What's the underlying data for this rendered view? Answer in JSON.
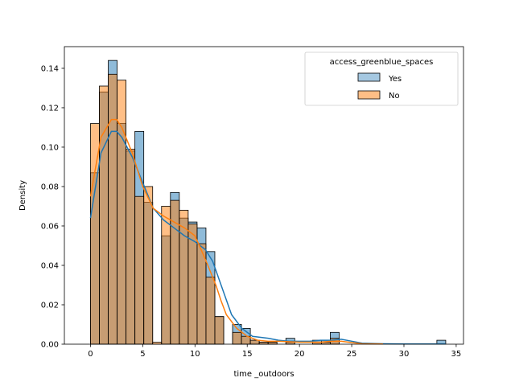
{
  "chart_data": {
    "type": "histogram",
    "xlabel": "time _outdoors",
    "ylabel": "Density",
    "xlim": [
      -2.5,
      35.7
    ],
    "ylim": [
      0,
      0.151
    ],
    "xticks": [
      0,
      5,
      10,
      15,
      20,
      25,
      30,
      35
    ],
    "yticks": [
      0.0,
      0.02,
      0.04,
      0.06,
      0.08,
      0.1,
      0.12,
      0.14
    ],
    "ytick_labels": [
      "0.00",
      "0.02",
      "0.04",
      "0.06",
      "0.08",
      "0.10",
      "0.12",
      "0.14"
    ],
    "bin_edges": [
      0,
      0.85,
      1.7,
      2.55,
      3.4,
      4.25,
      5.1,
      5.95,
      6.8,
      7.65,
      8.5,
      9.35,
      10.2,
      11.05,
      11.9,
      12.75,
      13.6,
      14.45,
      15.3,
      16.15,
      17.0,
      17.85,
      18.7,
      19.55,
      20.4,
      21.25,
      22.1,
      22.95,
      23.8,
      24.65,
      25.5,
      26.35,
      27.2,
      28.05,
      28.9,
      29.75,
      30.6,
      31.45,
      32.3,
      33.15,
      34.0
    ],
    "legend": {
      "title": "access_greenblue_spaces",
      "placement": "upper right",
      "entries": [
        "Yes",
        "No"
      ]
    },
    "series": [
      {
        "name": "Yes",
        "color": "#1f77b4",
        "fill": "#a5c8e1",
        "density": [
          0.087,
          0.128,
          0.144,
          0.112,
          0.098,
          0.108,
          0.072,
          0,
          0.055,
          0.077,
          0.064,
          0.062,
          0.059,
          0.047,
          0.014,
          0,
          0.01,
          0.008,
          0.002,
          0.001,
          0.001,
          0,
          0.003,
          0,
          0,
          0.002,
          0.002,
          0.006,
          0,
          0,
          0,
          0,
          0,
          0,
          0,
          0,
          0,
          0,
          0,
          0.002
        ],
        "kde_x": [
          0,
          1,
          2,
          2.5,
          3,
          4,
          5,
          6,
          7,
          8,
          9,
          10,
          11,
          11.7,
          12.5,
          13.5,
          14.5,
          15.5,
          17,
          18,
          19,
          20,
          21,
          22,
          23,
          24,
          25,
          26,
          28,
          30,
          32,
          34
        ],
        "kde_y": [
          0.064,
          0.097,
          0.108,
          0.108,
          0.105,
          0.095,
          0.082,
          0.069,
          0.063,
          0.059,
          0.055,
          0.052,
          0.048,
          0.042,
          0.03,
          0.015,
          0.008,
          0.004,
          0.003,
          0.002,
          0.0015,
          0.0015,
          0.0015,
          0.002,
          0.002,
          0.0025,
          0.0015,
          0.0005,
          0.0002,
          0.0001,
          0.0001,
          0.0001
        ]
      },
      {
        "name": "No",
        "color": "#ff7f0e",
        "fill": "#ffbe86",
        "density": [
          0.112,
          0.131,
          0.137,
          0.134,
          0.099,
          0.075,
          0.08,
          0.001,
          0.07,
          0.073,
          0.068,
          0.061,
          0.051,
          0.034,
          0.014,
          0,
          0.006,
          0.004,
          0.002,
          0.001,
          0.001,
          0,
          0.001,
          0,
          0,
          0.001,
          0.001,
          0.003,
          0,
          0,
          0,
          0,
          0,
          0,
          0,
          0,
          0,
          0,
          0,
          0
        ],
        "kde_x": [
          0,
          1,
          2,
          2.5,
          3,
          4,
          5,
          6,
          7,
          8,
          9,
          10,
          11,
          12,
          12.5,
          13,
          14,
          15,
          16,
          17,
          18,
          20,
          22,
          23,
          24,
          25,
          26,
          28
        ],
        "kde_y": [
          0.075,
          0.105,
          0.114,
          0.114,
          0.11,
          0.097,
          0.08,
          0.069,
          0.065,
          0.062,
          0.059,
          0.055,
          0.043,
          0.03,
          0.022,
          0.015,
          0.008,
          0.004,
          0.002,
          0.0015,
          0.0015,
          0.001,
          0.001,
          0.0015,
          0.0015,
          0.0008,
          0.0002,
          0.0001
        ]
      }
    ]
  }
}
